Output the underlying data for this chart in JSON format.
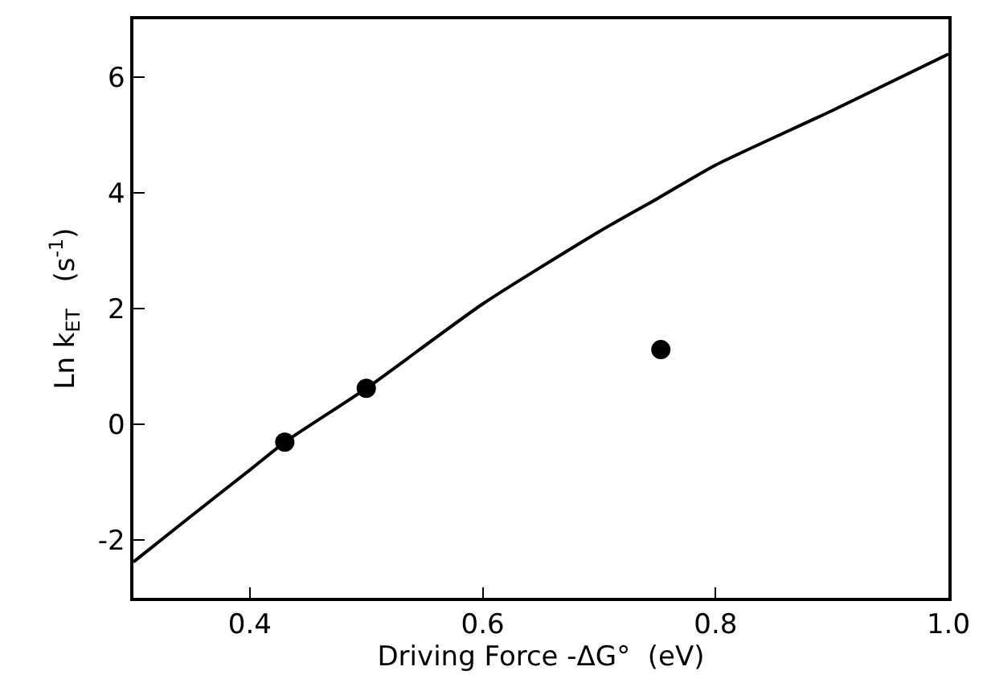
{
  "chart_data": {
    "type": "scatter",
    "xlabel": "Driving Force -ΔG°  (eV)",
    "ylabel": "Ln k$_{ET}$   (s$^{-1}$)",
    "xlim": [
      0.3,
      1.0
    ],
    "ylim": [
      -3,
      7
    ],
    "xticks": [
      {
        "value": 0.4,
        "label": "0.4"
      },
      {
        "value": 0.6,
        "label": "0.6"
      },
      {
        "value": 0.8,
        "label": "0.8"
      },
      {
        "value": 1.0,
        "label": "1.0"
      }
    ],
    "yticks": [
      -2,
      0,
      2,
      4,
      6
    ],
    "series": [
      {
        "type": "line",
        "color": "#000000",
        "marker": "none",
        "line_style": "solid",
        "x": [
          0.3,
          0.35,
          0.4,
          0.43,
          0.5,
          0.6,
          0.7,
          0.75,
          0.8,
          0.9,
          1.0
        ],
        "values": [
          -2.38,
          -1.58,
          -0.79,
          -0.31,
          0.62,
          2.08,
          3.33,
          3.9,
          4.48,
          5.42,
          6.4
        ]
      },
      {
        "color": "#000000",
        "marker": "circle",
        "x": [
          0.43,
          0.5,
          0.753
        ],
        "values": [
          -0.31,
          0.62,
          1.29
        ]
      }
    ]
  }
}
